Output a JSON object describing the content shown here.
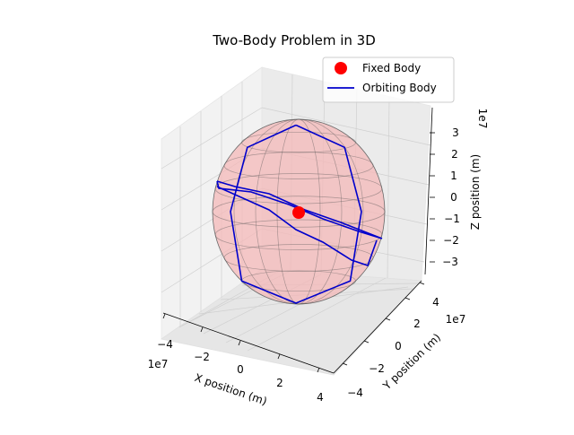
{
  "chart_data": {
    "type": "line3d",
    "title": "Two-Body Problem in 3D",
    "xlabel": "X position (m)",
    "ylabel": "Y position (m)",
    "zlabel": "Z position (m)",
    "x_ticks": [
      "−4",
      "−2",
      "0",
      "2",
      "4"
    ],
    "y_ticks": [
      "−4",
      "−2",
      "0",
      "2",
      "4"
    ],
    "z_ticks": [
      "3",
      "2",
      "1",
      "0",
      "−1",
      "−2",
      "−3"
    ],
    "x_offset": "1e7",
    "y_offset": "1e7",
    "z_offset": "1e7",
    "xlim": [
      -40000000,
      40000000
    ],
    "ylim": [
      -40000000,
      40000000
    ],
    "zlim": [
      -35000000,
      35000000
    ],
    "legend_position": "top-right",
    "grid": true,
    "series": [
      {
        "name": "Fixed Body",
        "kind": "marker",
        "color": "#ff0000",
        "x": 0,
        "y": 0,
        "z": 0
      },
      {
        "name": "Orbiting Body",
        "kind": "line",
        "color": "#0000cc",
        "x": [
          0,
          26000000,
          35000000,
          29000000,
          0,
          -29000000,
          -35000000,
          -26000000,
          0
        ],
        "y": [
          0,
          0,
          0,
          0,
          0,
          0,
          0,
          0,
          0
        ],
        "z": [
          35000000,
          26000000,
          0,
          -28000000,
          -37000000,
          -28000000,
          0,
          26000000,
          35000000
        ]
      }
    ],
    "sphere": {
      "color": "#f4b8b8",
      "radius": 40000000
    }
  }
}
